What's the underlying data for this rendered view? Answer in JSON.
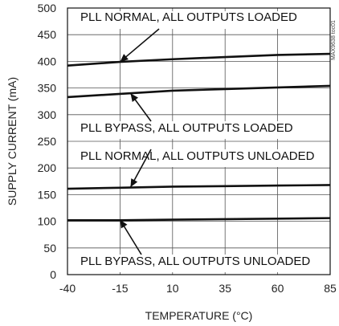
{
  "chart_data": {
    "type": "line",
    "title": "",
    "xlabel": "TEMPERATURE (°C)",
    "ylabel": "SUPPLY CURRENT (mA)",
    "xlim": [
      -40,
      85
    ],
    "ylim": [
      0,
      500
    ],
    "x_ticks": [
      -40,
      -15,
      10,
      35,
      60,
      85
    ],
    "y_ticks": [
      0,
      50,
      100,
      150,
      200,
      250,
      300,
      350,
      400,
      450,
      500
    ],
    "grid": true,
    "line_color": "#111111",
    "series": [
      {
        "x": [
          -40,
          -15,
          10,
          35,
          60,
          85
        ],
        "y": [
          392,
          399,
          404,
          408,
          412,
          414
        ]
      },
      {
        "x": [
          -40,
          -15,
          10,
          35,
          60,
          85
        ],
        "y": [
          333,
          339,
          345,
          348,
          351,
          354
        ]
      },
      {
        "x": [
          -40,
          -15,
          10,
          35,
          60,
          85
        ],
        "y": [
          161,
          163,
          165,
          166,
          167,
          168
        ]
      },
      {
        "x": [
          -40,
          -15,
          10,
          35,
          60,
          85
        ],
        "y": [
          102,
          102,
          103,
          104,
          105,
          106
        ]
      }
    ],
    "annotations": [
      {
        "text": "PLL NORMAL, ALL OUTPUTS LOADED",
        "box": true,
        "arrow_x": -15,
        "arrow_y": 399
      },
      {
        "text": "PLL BYPASS, ALL OUTPUTS LOADED",
        "box": true,
        "arrow_x": -10,
        "arrow_y": 340
      },
      {
        "text": "PLL NORMAL, ALL OUTPUTS UNLOADED",
        "box": true,
        "arrow_x": -10,
        "arrow_y": 164
      },
      {
        "text": "PLL BYPASS, ALL OUTPUTS UNLOADED",
        "box": true,
        "arrow_x": -15,
        "arrow_y": 103
      }
    ],
    "watermark": "MAX9638 toc01"
  }
}
